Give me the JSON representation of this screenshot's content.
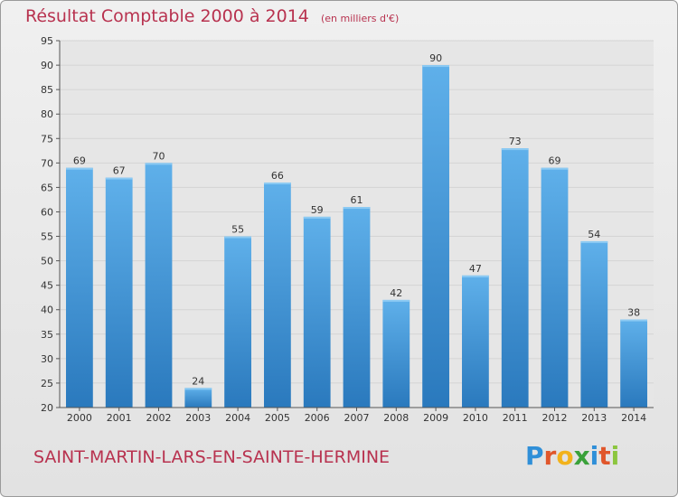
{
  "header": {
    "title": "Résultat Comptable 2000 à 2014",
    "unit": "(en milliers d'€)"
  },
  "footer": {
    "place": "SAINT-MARTIN-LARS-EN-SAINTE-HERMINE",
    "logo_letters": [
      "P",
      "r",
      "o",
      "x",
      "i",
      "t",
      "i"
    ],
    "logo_colors": [
      "#2f8fd8",
      "#e0562b",
      "#f2b21b",
      "#3aa13a",
      "#2f8fd8",
      "#e0562b",
      "#8cc63f"
    ]
  },
  "chart_data": {
    "type": "bar",
    "categories": [
      "2000",
      "2001",
      "2002",
      "2003",
      "2004",
      "2005",
      "2006",
      "2007",
      "2008",
      "2009",
      "2010",
      "2011",
      "2012",
      "2013",
      "2014"
    ],
    "values": [
      69,
      67,
      70,
      24,
      55,
      66,
      59,
      61,
      42,
      90,
      47,
      73,
      69,
      54,
      38
    ],
    "title": "Résultat Comptable 2000 à 2014",
    "xlabel": "",
    "ylabel": "",
    "ylim": [
      20,
      95
    ],
    "ytick_step": 5,
    "grid": true,
    "data_labels": true,
    "bar_color_top": "#5fb0ea",
    "bar_color_bottom": "#2a79bd",
    "grid_color": "#d4d4d4"
  }
}
